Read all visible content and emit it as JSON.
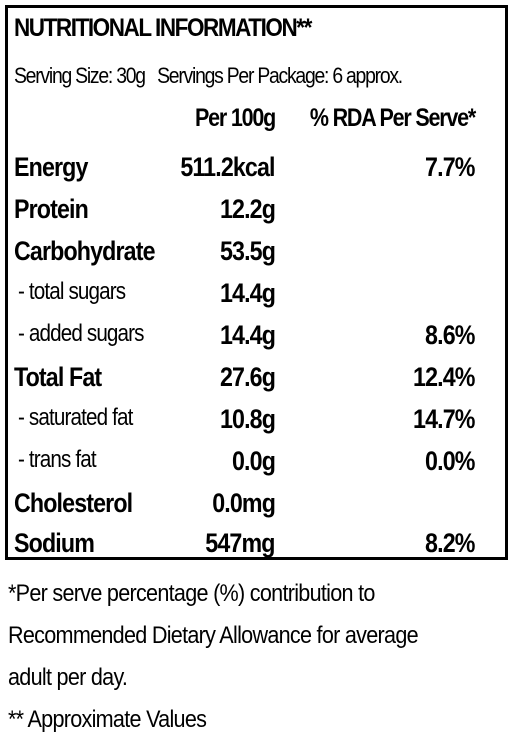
{
  "label": {
    "title": "NUTRITIONAL INFORMATION**",
    "serving_size": "Serving Size: 30g",
    "servings_per_package": "Servings Per Package: 6 approx.",
    "col_per_100g": "Per 100g",
    "col_rda": "% RDA Per Serve*",
    "rows": [
      {
        "name": "Energy",
        "per100": "511.2kcal",
        "rda": "7.7%"
      },
      {
        "name": "Protein",
        "per100": "12.2g",
        "rda": ""
      },
      {
        "name": "Carbohydrate",
        "per100": "53.5g",
        "rda": ""
      },
      {
        "name": "- total sugars",
        "per100": "14.4g",
        "rda": ""
      },
      {
        "name": "- added sugars",
        "per100": "14.4g",
        "rda": "8.6%"
      },
      {
        "name": "Total Fat",
        "per100": "27.6g",
        "rda": "12.4%"
      },
      {
        "name": "- saturated fat",
        "per100": "10.8g",
        "rda": "14.7%"
      },
      {
        "name": "- trans fat",
        "per100": "0.0g",
        "rda": "0.0%"
      },
      {
        "name": "Cholesterol",
        "per100": "0.0mg",
        "rda": ""
      },
      {
        "name": "Sodium",
        "per100": "547mg",
        "rda": "8.2%"
      }
    ]
  },
  "footnotes": {
    "line1": "*Per serve percentage (%) contribution to",
    "line2": "Recommended Dietary Allowance for average",
    "line3": "adult per day.",
    "line4": "** Approximate Values"
  }
}
